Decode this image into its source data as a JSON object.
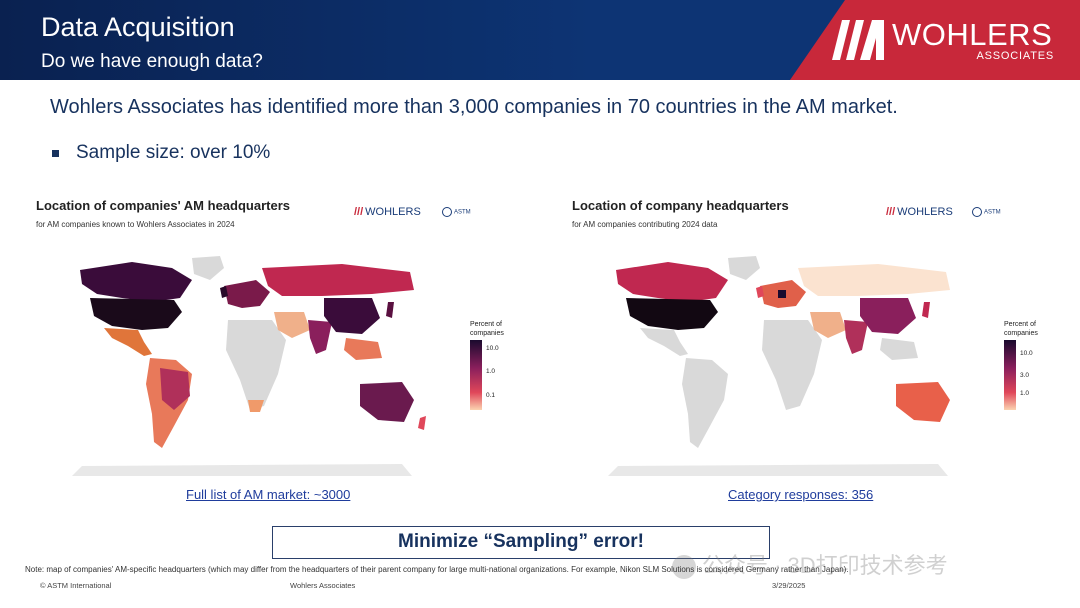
{
  "header": {
    "title": "Data Acquisition",
    "subtitle": "Do we have enough data?",
    "logo_word": "WOHLERS",
    "logo_assoc": "ASSOCIATES"
  },
  "intro": "Wohlers Associates has identified more than 3,000 companies in 70 countries in the AM market.",
  "bullet": "Sample size: over 10%",
  "maps": [
    {
      "title": "Location of companies' AM headquarters",
      "subtitle": "for AM companies known to Wohlers Associates in 2024",
      "mini_logo": "WOHLERS",
      "legend_title_1": "Percent of",
      "legend_title_2": "companies",
      "legend_ticks": [
        "10.0",
        "1.0",
        "0.1"
      ],
      "link": "Full list of AM market: ~3000"
    },
    {
      "title": "Location of company headquarters",
      "subtitle": "for AM companies contributing 2024 data",
      "mini_logo": "WOHLERS",
      "legend_title_1": "Percent of",
      "legend_title_2": "companies",
      "legend_ticks": [
        "10.0",
        "3.0",
        "1.0"
      ],
      "link": "Category responses: 356"
    }
  ],
  "callout": "Minimize “Sampling” error!",
  "note": "Note: map of companies' AM-specific headquarters (which may differ from the headquarters of their parent company for large multi-national organizations. For example, Nikon SLM Solutions is considered Germany rather than Japan).",
  "footer": {
    "copyright": "© ASTM International",
    "org": "Wohlers Associates",
    "date": "3/29/2025"
  },
  "watermark": "公众号 · 3D打印技术参考",
  "colors": {
    "header_blue": "#0d3474",
    "header_red": "#c8283a",
    "text_navy": "#17325e",
    "map_gray": "#d9d9d9"
  }
}
